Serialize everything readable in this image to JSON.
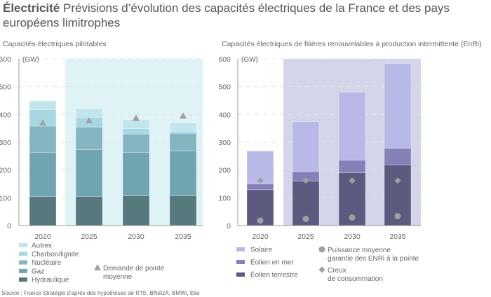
{
  "header": {
    "title_bold": "Électricité",
    "title_rest": " Prévisions d’évolution des capacités électriques de la France et des pays européens limitrophes"
  },
  "source": "Source : France Stratégie d’après des hypothèses de RTE, BNetzA, BMWi, Elia",
  "chart_data": [
    {
      "type": "bar",
      "stacked": true,
      "title": "Capacités électriques pilotables",
      "ylabel": "(GW)",
      "ylim": [
        0,
        600
      ],
      "yticks": [
        0,
        100,
        200,
        300,
        400,
        500,
        600
      ],
      "grid": "horizontal dashed",
      "categories": [
        "2020",
        "2025",
        "2030",
        "2035"
      ],
      "shaded_categories": [
        "2025",
        "2030",
        "2035"
      ],
      "shade_color": "#dff2f6",
      "series": [
        {
          "name": "Hydraulique",
          "color": "#56797d",
          "values": [
            105,
            105,
            107,
            107
          ]
        },
        {
          "name": "Gaz",
          "color": "#6fa4b1",
          "values": [
            158,
            168,
            156,
            161
          ]
        },
        {
          "name": "Nucléaire",
          "color": "#85b5c1",
          "values": [
            95,
            81,
            66,
            64
          ]
        },
        {
          "name": "Charbon/lignite",
          "color": "#a6d7e2",
          "values": [
            59,
            35,
            20,
            7
          ]
        },
        {
          "name": "Autres",
          "color": "#c1e5ec",
          "values": [
            32,
            32,
            32,
            30
          ]
        }
      ],
      "markers": [
        {
          "name": "Demande de pointe moyenne",
          "shape": "triangle",
          "color": "#a0a0a0",
          "values": [
            370,
            378,
            387,
            395
          ]
        }
      ],
      "legend": "bottom"
    },
    {
      "type": "bar",
      "stacked": true,
      "title": "Capacités électriques de filières renouvelables à production intermittente (EnRi)",
      "ylabel": "(GW)",
      "ylim": [
        0,
        600
      ],
      "yticks": [
        0,
        100,
        200,
        300,
        400,
        500,
        600
      ],
      "grid": "horizontal dashed",
      "categories": [
        "2020",
        "2025",
        "2030",
        "2035"
      ],
      "shaded_categories": [
        "2025",
        "2030",
        "2035"
      ],
      "shade_color": "#d4d4ea",
      "series": [
        {
          "name": "Éolien terrestre",
          "color": "#5c5a7e",
          "values": [
            129,
            160,
            190,
            218
          ]
        },
        {
          "name": "Éolien en mer",
          "color": "#8580b8",
          "values": [
            21,
            34,
            45,
            60
          ]
        },
        {
          "name": "Solaire",
          "color": "#b9b9e8",
          "values": [
            118,
            180,
            245,
            305
          ]
        }
      ],
      "markers": [
        {
          "name": "Puissance moyenne garantie des ENRi à la pointe",
          "shape": "circle",
          "color": "#a0a0a0",
          "values": [
            18,
            24,
            29,
            34
          ]
        },
        {
          "name": "Creux de consommation",
          "shape": "diamond",
          "color": "#a0a0a0",
          "values": [
            162,
            162,
            162,
            162
          ]
        }
      ],
      "legend": "bottom"
    }
  ],
  "legend_left": {
    "series_order": [
      "Autres",
      "Charbon/lignite",
      "Nucléaire",
      "Gaz",
      "Hydraulique"
    ],
    "marker_lines": [
      "Demande de pointe",
      "moyenne"
    ]
  },
  "legend_right": {
    "series_order": [
      "Solaire",
      "Éolien en mer",
      "Éolien terrestre"
    ],
    "marker1_lines": [
      "Puissance moyenne",
      "garantie des ENRi à la pointe"
    ],
    "marker2_lines": [
      "Creux",
      "de consommation"
    ]
  }
}
